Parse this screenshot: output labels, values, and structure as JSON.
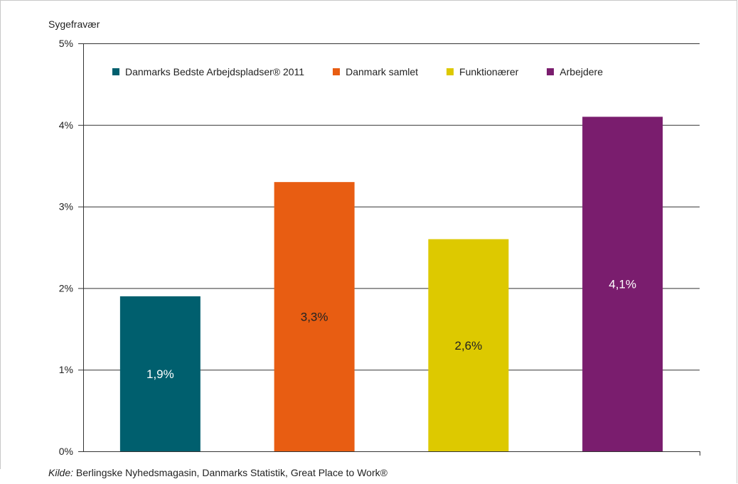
{
  "chart_data": {
    "type": "bar",
    "ylabel": "Sygefravær",
    "ylim": [
      0,
      5
    ],
    "yticks": [
      "0%",
      "1%",
      "2%",
      "3%",
      "4%",
      "5%"
    ],
    "grid": true,
    "legend_position": "top",
    "categories": [
      "Danmarks Bedste Arbejdspladser® 2011",
      "Danmark samlet",
      "Funktionærer",
      "Arbejdere"
    ],
    "values": [
      1.9,
      3.3,
      2.6,
      4.1
    ],
    "data_labels": [
      "1,9%",
      "3,3%",
      "2,6%",
      "4,1%"
    ],
    "colors": [
      "#005f6e",
      "#e85d12",
      "#ddc900",
      "#7a1d6e"
    ],
    "label_colors": [
      "#ffffff",
      "#222222",
      "#222222",
      "#ffffff"
    ]
  },
  "source": {
    "prefix": "Kilde:",
    "text": " Berlingske Nyhedsmagasin, Danmarks Statistik, Great Place to Work®"
  }
}
